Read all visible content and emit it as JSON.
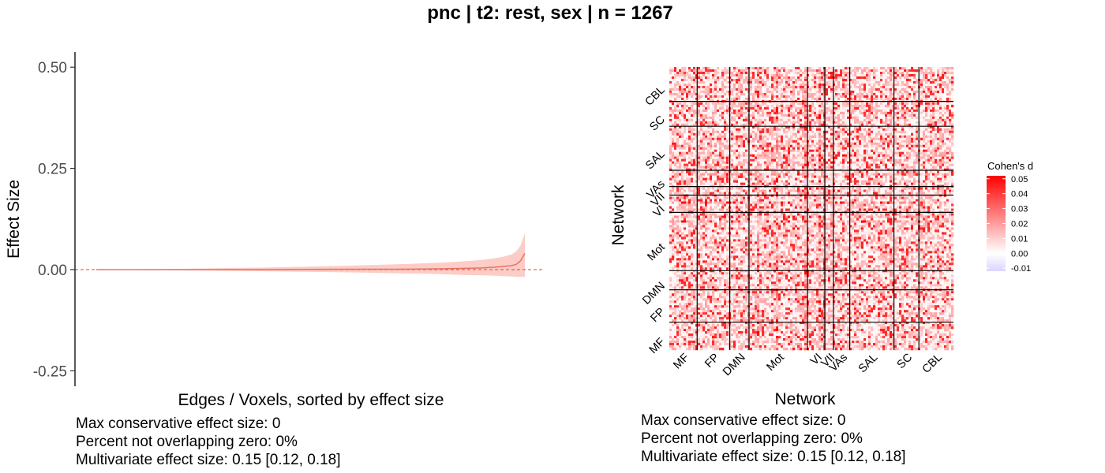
{
  "title": "pnc | t2: rest, sex | n = 1267",
  "colors": {
    "line": "#ec7063",
    "ribbon": "#fbc4bc",
    "zero_line": "#e0443a",
    "heat_high": "#ff0000",
    "heat_zero": "#ffffff",
    "heat_low": "#dcd4ff"
  },
  "chart_data": [
    {
      "type": "area",
      "name": "spaghetti",
      "x_label": "Edges / Voxels, sorted by effect size",
      "y_label": "Effect Size",
      "ylim": [
        -0.27,
        0.54
      ],
      "y_ticks": [
        "0.50",
        "0.25",
        "0.00",
        "-0.25"
      ],
      "y_tick_values": [
        0.5,
        0.25,
        0.0,
        -0.25
      ],
      "reference_line": 0.0,
      "x": [
        0,
        0.2,
        0.4,
        0.6,
        0.7,
        0.8,
        0.85,
        0.9,
        0.93,
        0.95,
        0.97,
        0.98,
        0.99,
        1.0
      ],
      "estimate": [
        0,
        0,
        0,
        0.001,
        0.001,
        0.002,
        0.003,
        0.004,
        0.006,
        0.008,
        0.01,
        0.013,
        0.022,
        0.04
      ],
      "lower": [
        0,
        -0.002,
        -0.004,
        -0.007,
        -0.009,
        -0.011,
        -0.013,
        -0.014,
        -0.015,
        -0.016,
        -0.017,
        -0.018,
        -0.018,
        -0.018
      ],
      "upper": [
        0,
        0.002,
        0.005,
        0.01,
        0.013,
        0.017,
        0.02,
        0.024,
        0.028,
        0.032,
        0.038,
        0.045,
        0.06,
        0.09
      ],
      "notes": [
        "Max conservative effect size: 0",
        "Percent not overlapping zero: 0%",
        "Multivariate effect size: 0.15 [0.12, 0.18]"
      ]
    },
    {
      "type": "heatmap",
      "name": "network-matrix",
      "x_label": "Network",
      "y_label": "Network",
      "networks": [
        "MF",
        "FP",
        "DMN",
        "Mot",
        "VI",
        "VII",
        "VAs",
        "SAL",
        "SC",
        "CBL"
      ],
      "network_sizes": [
        29,
        34,
        20,
        61,
        18,
        9,
        17,
        46,
        26,
        36
      ],
      "legend": {
        "title": "Cohen's d",
        "ticks": [
          "0.05",
          "0.04",
          "0.03",
          "0.02",
          "0.01",
          "0.00",
          "-0.01"
        ],
        "tick_values": [
          0.05,
          0.04,
          0.03,
          0.02,
          0.01,
          0.0,
          -0.01
        ],
        "range": [
          -0.012,
          0.052
        ]
      },
      "notes": [
        "Max conservative effect size: 0",
        "Percent not overlapping zero: 0%",
        "Multivariate effect size: 0.15 [0.12, 0.18]"
      ]
    }
  ]
}
